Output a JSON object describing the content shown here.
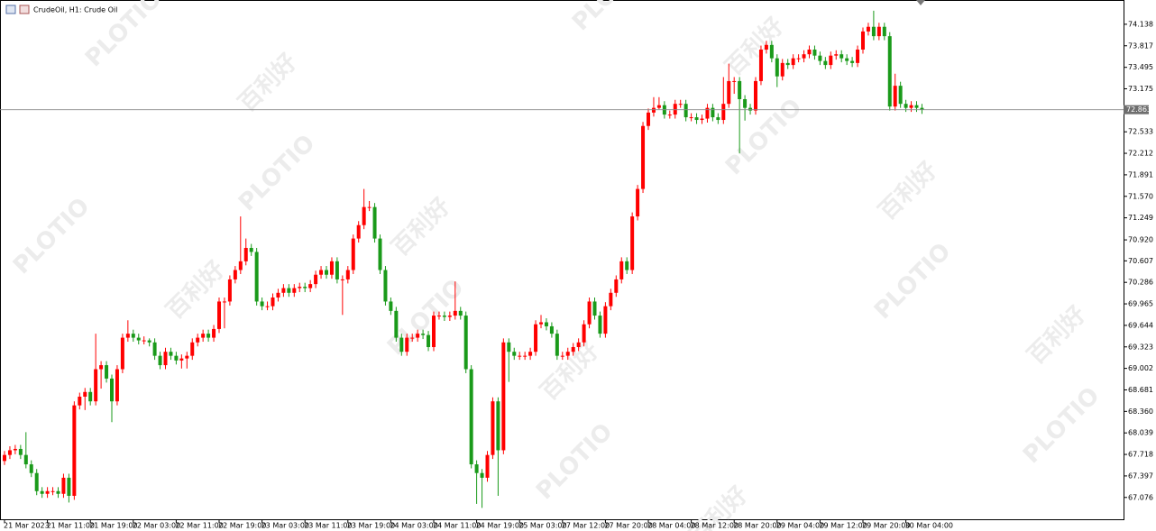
{
  "chart_data": {
    "type": "candlestick",
    "title": "CrudeOil, H1:  Crude Oil",
    "watermark": "PLOTIO",
    "watermark_cn": "百利好",
    "up_color": "#ff0000",
    "down_color": "#1a9a1a",
    "last_price": 72.863,
    "ylim": [
      66.75,
      74.5
    ],
    "yticks": [
      74.138,
      73.817,
      73.495,
      73.175,
      72.533,
      72.212,
      71.891,
      {
        "value": 71.57,
        "label": "71.570"
      },
      71.249,
      {
        "value": 70.92,
        "label": "70.920"
      },
      70.607,
      70.286,
      69.965,
      69.644,
      69.323,
      69.002,
      68.681,
      {
        "value": 68.36,
        "label": "68.360"
      },
      68.039,
      67.718,
      67.397,
      67.076
    ],
    "categories": [
      "21 Mar 2023",
      null,
      null,
      null,
      null,
      null,
      null,
      null,
      "21 Mar 11:00",
      null,
      null,
      null,
      null,
      null,
      null,
      null,
      "21 Mar 19:00",
      null,
      null,
      null,
      null,
      null,
      null,
      null,
      "22 Mar 03:00",
      null,
      null,
      null,
      null,
      null,
      null,
      null,
      "22 Mar 11:00",
      null,
      null,
      null,
      null,
      null,
      null,
      null,
      "22 Mar 19:00",
      null,
      null,
      null,
      null,
      null,
      null,
      null,
      "23 Mar 03:00",
      null,
      null,
      null,
      null,
      null,
      null,
      null,
      "23 Mar 11:00",
      null,
      null,
      null,
      null,
      null,
      null,
      null,
      "23 Mar 19:00",
      null,
      null,
      null,
      null,
      null,
      null,
      null,
      "24 Mar 03:00",
      null,
      null,
      null,
      null,
      null,
      null,
      null,
      "24 Mar 11:00",
      null,
      null,
      null,
      null,
      null,
      null,
      null,
      "24 Mar 19:00",
      null,
      null,
      null,
      null,
      null,
      null,
      null,
      "25 Mar 03:00",
      null,
      null,
      null,
      null,
      null,
      null,
      null,
      "27 Mar 12:00",
      null,
      null,
      null,
      null,
      null,
      null,
      null,
      "27 Mar 20:00",
      null,
      null,
      null,
      null,
      null,
      null,
      null,
      "28 Mar 04:00",
      null,
      null,
      null,
      null,
      null,
      null,
      null,
      "28 Mar 12:00",
      null,
      null,
      null,
      null,
      null,
      null,
      null,
      "28 Mar 20:00",
      null,
      null,
      null,
      null,
      null,
      null,
      null,
      "29 Mar 04:00",
      null,
      null,
      null,
      null,
      null,
      null,
      null,
      "29 Mar 12:00",
      null,
      null,
      null,
      null,
      null,
      null,
      null,
      "29 Mar 20:00",
      null,
      null,
      null,
      null,
      null,
      null,
      null,
      "30 Mar 04:00",
      null,
      null,
      null
    ],
    "open": [
      67.62,
      67.71,
      67.78,
      67.8,
      67.71,
      67.57,
      67.44,
      67.17,
      67.13,
      67.17,
      67.17,
      67.13,
      67.37,
      67.1,
      68.45,
      68.58,
      68.65,
      68.51,
      68.99,
      69.05,
      68.85,
      68.51,
      68.99,
      69.46,
      69.52,
      69.46,
      69.42,
      69.42,
      69.39,
      69.19,
      69.05,
      69.25,
      69.19,
      69.12,
      69.15,
      69.19,
      69.39,
      69.46,
      69.52,
      69.46,
      69.59,
      70.0,
      70.0,
      70.33,
      70.47,
      70.6,
      70.8,
      70.74,
      70.0,
      69.93,
      69.93,
      70.06,
      70.13,
      70.2,
      70.13,
      70.2,
      70.22,
      70.2,
      70.26,
      70.4,
      70.47,
      70.4,
      70.6,
      70.33,
      70.33,
      70.47,
      70.94,
      71.14,
      71.41,
      71.41,
      70.94,
      70.47,
      70.0,
      69.86,
      69.46,
      69.25,
      69.46,
      69.46,
      69.52,
      69.5,
      69.32,
      69.79,
      69.79,
      69.77,
      69.79,
      69.86,
      69.79,
      68.99,
      67.57,
      67.44,
      67.37,
      67.71,
      68.51,
      67.78,
      69.39,
      69.25,
      69.19,
      69.19,
      69.19,
      69.25,
      69.66,
      69.69,
      69.63,
      69.52,
      69.19,
      69.19,
      69.25,
      69.32,
      69.39,
      69.66,
      70.0,
      69.79,
      69.52,
      69.93,
      70.13,
      70.33,
      70.6,
      70.47,
      71.27,
      71.68,
      72.62,
      72.82,
      72.89,
      72.93,
      72.79,
      72.79,
      72.95,
      72.95,
      72.75,
      72.75,
      72.71,
      72.73,
      72.89,
      72.75,
      72.71,
      72.95,
      73.29,
      73.29,
      73.02,
      72.89,
      72.85,
      73.29,
      73.76,
      73.83,
      73.63,
      73.36,
      73.56,
      73.53,
      73.63,
      73.63,
      73.69,
      73.76,
      73.67,
      73.59,
      73.53,
      73.67,
      73.69,
      73.63,
      73.59,
      73.56,
      73.76,
      74.03,
      74.1,
      73.96,
      74.1,
      73.96,
      72.91,
      73.22,
      72.95,
      72.89,
      72.93,
      72.89
    ],
    "high": [
      67.77,
      67.84,
      67.86,
      67.86,
      68.05,
      67.63,
      67.5,
      67.23,
      67.23,
      67.23,
      67.23,
      67.43,
      67.43,
      68.51,
      68.64,
      68.71,
      68.71,
      69.52,
      69.11,
      69.11,
      68.91,
      69.05,
      69.52,
      69.72,
      69.58,
      69.52,
      69.48,
      69.45,
      69.45,
      69.25,
      69.31,
      69.31,
      69.25,
      69.21,
      69.25,
      69.45,
      69.52,
      69.58,
      69.58,
      69.65,
      70.06,
      70.06,
      70.39,
      70.53,
      71.27,
      70.94,
      70.86,
      70.8,
      70.06,
      70.0,
      70.12,
      70.19,
      70.26,
      70.26,
      70.26,
      70.28,
      70.28,
      70.32,
      70.46,
      70.53,
      70.53,
      70.66,
      70.66,
      70.39,
      70.53,
      71.0,
      71.2,
      71.68,
      71.5,
      71.47,
      71.0,
      70.53,
      70.06,
      69.92,
      69.52,
      69.52,
      69.52,
      69.58,
      69.58,
      69.56,
      69.85,
      69.85,
      69.85,
      69.85,
      70.3,
      69.92,
      69.85,
      69.05,
      67.63,
      67.5,
      67.77,
      68.57,
      68.57,
      69.45,
      69.45,
      69.31,
      69.25,
      69.25,
      69.31,
      69.72,
      69.8,
      69.75,
      69.69,
      69.58,
      69.25,
      69.31,
      69.38,
      69.45,
      69.72,
      70.06,
      70.06,
      69.85,
      69.99,
      70.19,
      70.39,
      70.66,
      70.66,
      71.33,
      71.74,
      72.68,
      72.88,
      73.05,
      73.05,
      72.99,
      72.85,
      73.01,
      73.01,
      73.01,
      72.81,
      72.81,
      72.79,
      72.95,
      72.95,
      72.81,
      73.35,
      73.55,
      73.35,
      73.35,
      73.08,
      72.95,
      73.35,
      73.82,
      73.89,
      73.89,
      73.69,
      73.62,
      73.62,
      73.69,
      73.69,
      73.75,
      73.82,
      73.82,
      73.73,
      73.65,
      73.73,
      73.75,
      73.75,
      73.69,
      73.65,
      73.82,
      74.09,
      74.16,
      74.34,
      74.16,
      74.16,
      74.02,
      73.4,
      73.28,
      73.01,
      72.99,
      72.99,
      72.95
    ],
    "low": [
      67.56,
      67.65,
      67.72,
      67.65,
      67.51,
      67.38,
      67.11,
      67.07,
      67.07,
      67.11,
      67.07,
      67.07,
      67.0,
      67.04,
      68.39,
      68.38,
      68.45,
      68.45,
      68.7,
      68.79,
      68.2,
      68.45,
      68.93,
      69.4,
      69.4,
      69.36,
      69.36,
      69.33,
      69.13,
      68.99,
      68.99,
      69.13,
      69.06,
      69.0,
      69.0,
      69.13,
      69.33,
      69.4,
      69.4,
      69.4,
      69.53,
      69.6,
      69.94,
      70.27,
      70.41,
      70.54,
      70.68,
      69.94,
      69.87,
      69.87,
      69.87,
      70.0,
      70.07,
      70.07,
      70.07,
      70.14,
      70.14,
      70.14,
      70.2,
      70.34,
      70.34,
      70.34,
      70.27,
      69.8,
      70.27,
      70.41,
      70.88,
      71.08,
      71.35,
      70.88,
      70.41,
      69.94,
      69.8,
      69.4,
      69.19,
      69.19,
      69.4,
      69.4,
      69.44,
      69.26,
      69.26,
      69.73,
      69.71,
      69.71,
      69.73,
      69.73,
      68.93,
      67.51,
      66.98,
      66.92,
      67.31,
      67.65,
      67.1,
      67.72,
      68.8,
      69.13,
      69.13,
      69.13,
      69.13,
      69.19,
      69.6,
      69.57,
      69.46,
      69.13,
      69.13,
      69.13,
      69.19,
      69.26,
      69.33,
      69.6,
      69.73,
      69.46,
      69.46,
      69.87,
      70.07,
      70.27,
      70.41,
      70.41,
      71.21,
      71.62,
      72.56,
      72.76,
      72.87,
      72.73,
      72.73,
      72.73,
      72.89,
      72.69,
      72.69,
      72.65,
      72.65,
      72.67,
      72.69,
      72.65,
      72.65,
      72.89,
      73.1,
      72.21,
      72.7,
      72.79,
      72.79,
      73.23,
      73.7,
      73.57,
      73.2,
      73.3,
      73.47,
      73.47,
      73.57,
      73.57,
      73.63,
      73.61,
      73.53,
      73.47,
      73.47,
      73.61,
      73.57,
      73.53,
      73.5,
      73.5,
      73.7,
      73.97,
      73.9,
      73.9,
      73.9,
      72.85,
      72.85,
      72.89,
      72.83,
      72.83,
      72.83,
      72.8
    ],
    "close": [
      67.71,
      67.78,
      67.8,
      67.71,
      67.57,
      67.44,
      67.17,
      67.13,
      67.17,
      67.17,
      67.13,
      67.37,
      67.1,
      68.45,
      68.58,
      68.65,
      68.51,
      68.99,
      69.05,
      68.85,
      68.51,
      68.99,
      69.46,
      69.52,
      69.46,
      69.42,
      69.42,
      69.39,
      69.19,
      69.05,
      69.25,
      69.19,
      69.12,
      69.15,
      69.19,
      69.39,
      69.46,
      69.52,
      69.46,
      69.59,
      70.0,
      70.0,
      70.33,
      70.47,
      70.6,
      70.8,
      70.74,
      70.0,
      69.93,
      69.93,
      70.06,
      70.13,
      70.2,
      70.13,
      70.2,
      70.22,
      70.2,
      70.26,
      70.4,
      70.47,
      70.4,
      70.6,
      70.33,
      70.33,
      70.47,
      70.94,
      71.14,
      71.41,
      71.41,
      70.94,
      70.47,
      70.0,
      69.86,
      69.46,
      69.25,
      69.46,
      69.46,
      69.52,
      69.5,
      69.32,
      69.79,
      69.79,
      69.77,
      69.79,
      69.86,
      69.79,
      68.99,
      67.57,
      67.44,
      67.37,
      67.71,
      68.51,
      67.78,
      69.39,
      69.25,
      69.19,
      69.19,
      69.19,
      69.25,
      69.66,
      69.69,
      69.63,
      69.52,
      69.19,
      69.19,
      69.25,
      69.32,
      69.39,
      69.66,
      70.0,
      69.79,
      69.52,
      69.93,
      70.13,
      70.33,
      70.6,
      70.47,
      71.27,
      71.68,
      72.62,
      72.82,
      72.89,
      72.93,
      72.79,
      72.79,
      72.95,
      72.95,
      72.75,
      72.75,
      72.71,
      72.73,
      72.89,
      72.75,
      72.71,
      72.95,
      73.29,
      73.29,
      73.02,
      72.89,
      72.85,
      73.29,
      73.76,
      73.83,
      73.63,
      73.36,
      73.56,
      73.53,
      73.63,
      73.63,
      73.69,
      73.76,
      73.67,
      73.59,
      73.53,
      73.67,
      73.69,
      73.63,
      73.59,
      73.56,
      73.76,
      74.03,
      74.1,
      73.96,
      74.1,
      73.96,
      72.91,
      73.22,
      72.95,
      72.89,
      72.93,
      72.89,
      72.86
    ]
  }
}
